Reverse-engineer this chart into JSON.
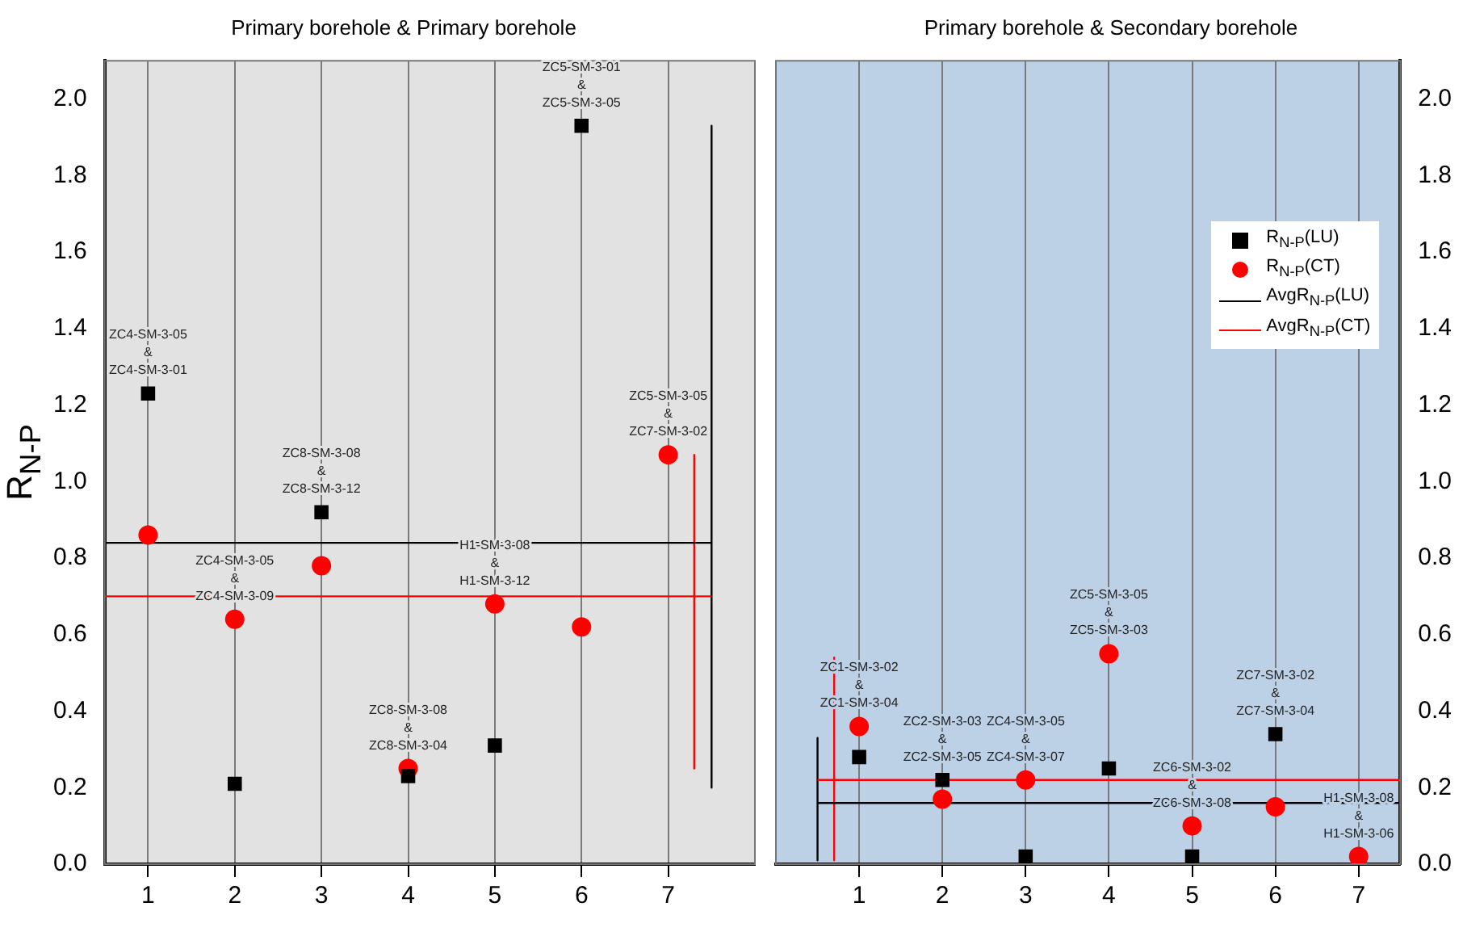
{
  "chart_data": [
    {
      "type": "scatter",
      "title": "Primary borehole & Primary borehole",
      "ylabel": "R$_{N-P}$",
      "xlim": [
        0.5,
        8
      ],
      "xticks": [
        1,
        2,
        3,
        4,
        5,
        6,
        7
      ],
      "ylim": [
        0,
        2.1
      ],
      "yticks": [
        {
          "value": 0,
          "label": "0.0"
        },
        0.2,
        0.4,
        0.6,
        0.8,
        {
          "value": 1,
          "label": "1.0"
        },
        1.2,
        1.4,
        1.6,
        1.8,
        {
          "value": 2,
          "label": "2.0"
        }
      ],
      "grid": "x",
      "legend": false,
      "x": [
        1,
        2,
        3,
        4,
        5,
        6,
        7
      ],
      "series": [
        {
          "type": "scatter",
          "marker": "square",
          "color": "#000000",
          "values": [
            1.23,
            0.21,
            0.92,
            0.23,
            0.31,
            1.93,
            null
          ]
        },
        {
          "type": "scatter",
          "marker": "circle",
          "color": "#ff0000",
          "values": [
            0.86,
            0.64,
            0.78,
            0.25,
            0.68,
            0.62,
            1.07
          ]
        },
        {
          "type": "line",
          "marker": "none",
          "color": "#000000",
          "x": [
            0.5,
            7.5
          ],
          "values": [
            0.84,
            0.84
          ]
        },
        {
          "type": "line",
          "marker": "none",
          "color": "#ff0000",
          "x": [
            0.5,
            7.5
          ],
          "values": [
            0.7,
            0.7
          ]
        },
        {
          "type": "line",
          "marker": "none",
          "color": "#000000",
          "x": [
            7.5,
            7.5
          ],
          "values": [
            1.93,
            0.2
          ]
        },
        {
          "type": "line",
          "marker": "none",
          "color": "#ff0000",
          "x": [
            7.3,
            7.3
          ],
          "values": [
            1.07,
            0.25
          ]
        }
      ],
      "annotations": [
        {
          "text": "ZC4-SM-3-05\n&\nZC4-SM-3-01",
          "x": 1,
          "y": 1.23
        },
        {
          "text": "ZC4-SM-3-05\n&\nZC4-SM-3-09",
          "x": 2,
          "y": 0.64
        },
        {
          "text": "ZC8-SM-3-08\n&\nZC8-SM-3-12",
          "x": 3,
          "y": 0.92
        },
        {
          "text": "ZC8-SM-3-08\n&\nZC8-SM-3-04",
          "x": 4,
          "y": 0.25
        },
        {
          "text": "H1-SM-3-08\n&\nH1-SM-3-12",
          "x": 5,
          "y": 0.68
        },
        {
          "text": "ZC5-SM-3-01\n&\nZC5-SM-3-05",
          "x": 6,
          "y": 1.93
        },
        {
          "text": "ZC5-SM-3-05\n&\nZC7-SM-3-02",
          "x": 7,
          "y": 1.07
        }
      ]
    },
    {
      "type": "scatter",
      "title": "Primary borehole & Secondary borehole",
      "xlim": [
        0,
        7.5
      ],
      "xticks": [
        1,
        2,
        3,
        4,
        5,
        6,
        7
      ],
      "ylim": [
        0,
        2.1
      ],
      "yticks": [
        {
          "value": 0,
          "label": "0.0"
        },
        0.2,
        0.4,
        0.6,
        0.8,
        {
          "value": 1,
          "label": "1.0"
        },
        1.2,
        1.4,
        1.6,
        1.8,
        {
          "value": 2,
          "label": "2.0"
        }
      ],
      "grid": "x",
      "legend": "top right",
      "x": [
        1,
        2,
        3,
        4,
        5,
        6,
        7
      ],
      "series": [
        {
          "type": "scatter",
          "marker": "square",
          "name": "R$_{N-P}$(LU)",
          "color": "#000000",
          "values": [
            0.28,
            0.22,
            0.02,
            0.25,
            0.02,
            0.34,
            null
          ]
        },
        {
          "type": "scatter",
          "marker": "circle",
          "name": "R$_{N-P}$(CT)",
          "color": "#ff0000",
          "values": [
            0.36,
            0.17,
            0.22,
            0.55,
            0.1,
            0.15,
            0.02
          ]
        },
        {
          "type": "line",
          "marker": "none",
          "name": "AvgR$_{N-P}$(LU)",
          "color": "#000000",
          "x": [
            0.5,
            7.5
          ],
          "values": [
            0.16,
            0.16
          ]
        },
        {
          "type": "line",
          "marker": "none",
          "name": "AvgR$_{N-P}$(CT)",
          "color": "#ff0000",
          "x": [
            0.5,
            7.5
          ],
          "values": [
            0.22,
            0.22
          ]
        },
        {
          "type": "line",
          "marker": "none",
          "color": "#000000",
          "x": [
            0.5,
            0.5
          ],
          "values": [
            0.33,
            0.01
          ]
        },
        {
          "type": "line",
          "marker": "none",
          "color": "#ff0000",
          "x": [
            0.7,
            0.7
          ],
          "values": [
            0.54,
            0.01
          ]
        }
      ],
      "annotations": [
        {
          "text": "ZC1-SM-3-02\n&\nZC1-SM-3-04",
          "x": 1,
          "y": 0.36
        },
        {
          "text": "ZC2-SM-3-03\n&\nZC2-SM-3-05",
          "x": 2,
          "y": 0.22
        },
        {
          "text": "ZC4-SM-3-05\n&\nZC4-SM-3-07",
          "x": 3,
          "y": 0.22
        },
        {
          "text": "ZC5-SM-3-05\n&\nZC5-SM-3-03",
          "x": 4,
          "y": 0.55
        },
        {
          "text": "ZC6-SM-3-02\n&\nZC6-SM-3-08",
          "x": 5,
          "y": 0.1
        },
        {
          "text": "ZC7-SM-3-02\n&\nZC7-SM-3-04",
          "x": 6,
          "y": 0.34
        },
        {
          "text": "H1-SM-3-08\n&\nH1-SM-3-06",
          "x": 7,
          "y": 0.02
        }
      ]
    }
  ]
}
